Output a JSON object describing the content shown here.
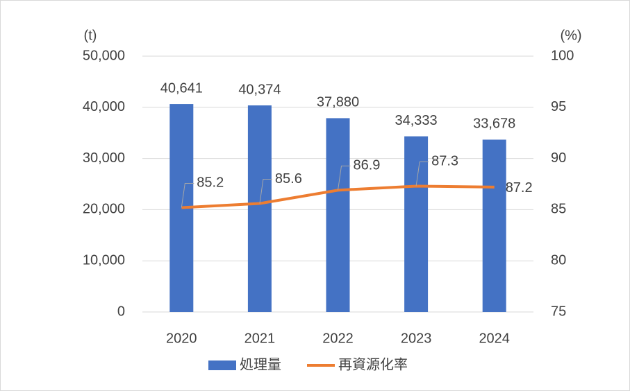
{
  "chart_data": {
    "type": "bar",
    "categories": [
      "2020",
      "2021",
      "2022",
      "2023",
      "2024"
    ],
    "series": [
      {
        "name": "処理量",
        "type": "bar",
        "color": "#4472c4",
        "values": [
          40641,
          40374,
          37880,
          34333,
          33678
        ],
        "value_labels": [
          "40,641",
          "40,374",
          "37,880",
          "34,333",
          "33,678"
        ]
      },
      {
        "name": "再資源化率",
        "type": "line",
        "axis": "y2",
        "color": "#ed7d31",
        "values": [
          85.2,
          85.6,
          86.9,
          87.3,
          87.2
        ]
      }
    ],
    "y_unit": "(t)",
    "y2_unit": "(%)",
    "ylim": [
      0,
      50000
    ],
    "yticks": [
      0,
      {
        "value": 10000,
        "label": "10,000"
      },
      {
        "value": 20000,
        "label": "20,000"
      },
      {
        "value": 30000,
        "label": "30,000"
      },
      {
        "value": 40000,
        "label": "40,000"
      },
      {
        "value": 50000,
        "label": "50,000"
      }
    ],
    "y2lim": [
      75,
      100
    ],
    "y2ticks": [
      75,
      80,
      85,
      90,
      95,
      100
    ],
    "grid": true,
    "legend": "bottom"
  }
}
